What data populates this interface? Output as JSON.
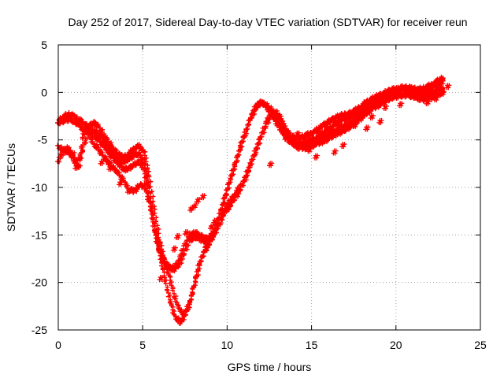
{
  "chart_data": {
    "type": "scatter",
    "title": "Day 252 of 2017, Sidereal Day-to-day VTEC variation (SDTVAR) for receiver reun",
    "xlabel": "GPS time / hours",
    "ylabel": "SDTVAR / TECUs",
    "xlim": [
      0,
      25
    ],
    "ylim": [
      -25,
      5
    ],
    "xticks": [
      0,
      5,
      10,
      15,
      20,
      25
    ],
    "yticks": [
      5,
      0,
      -5,
      -10,
      -15,
      -20,
      -25
    ],
    "grid": true,
    "marker": "+",
    "color": "#ff0000",
    "series": [
      {
        "x": [
          0.0,
          0.3,
          0.6,
          0.9,
          1.2,
          1.5,
          1.8,
          2.1,
          2.4,
          2.7,
          3.0,
          3.3,
          3.6,
          3.9,
          4.2,
          4.5,
          4.8,
          5.1,
          5.4,
          5.7,
          6.0,
          6.3,
          6.6,
          6.9,
          7.2,
          7.5,
          7.8,
          8.1,
          8.4,
          8.7,
          9.0,
          9.3,
          9.6,
          9.9,
          10.2,
          10.5,
          10.8,
          11.1,
          11.4,
          11.7,
          12.0,
          12.3,
          12.6,
          12.9,
          13.2,
          13.5,
          13.8,
          14.1,
          14.4,
          14.7,
          15.0,
          15.3,
          15.6,
          15.9,
          16.2,
          16.5,
          16.8,
          17.1,
          17.4,
          17.7,
          18.0,
          18.3,
          18.6,
          18.9,
          19.2,
          19.5,
          19.8,
          20.1,
          20.4,
          20.7,
          21.0,
          21.3,
          21.6,
          21.9,
          22.2,
          22.5,
          22.8
        ],
        "y": [
          -3.0,
          -2.6,
          -2.3,
          -2.5,
          -2.8,
          -3.3,
          -3.6,
          -3.2,
          -3.6,
          -4.5,
          -5.3,
          -6.0,
          -6.6,
          -6.8,
          -6.5,
          -5.9,
          -5.6,
          -6.4,
          -8.8,
          -12.5,
          -15.5,
          -17.8,
          -19.5,
          -21.5,
          -23.0,
          -23.3,
          -22.2,
          -20.0,
          -18.0,
          -16.6,
          -15.8,
          -14.6,
          -12.8,
          -11.0,
          -9.2,
          -7.6,
          -5.8,
          -4.2,
          -2.8,
          -1.6,
          -1.1,
          -1.3,
          -1.8,
          -2.6,
          -3.4,
          -4.1,
          -4.6,
          -4.8,
          -4.7,
          -4.5,
          -4.3,
          -4.0,
          -3.6,
          -3.2,
          -2.9,
          -2.6,
          -2.4,
          -2.3,
          -2.1,
          -1.8,
          -1.4,
          -1.0,
          -0.7,
          -0.4,
          -0.2,
          0.1,
          0.3,
          0.4,
          0.5,
          0.5,
          0.4,
          0.3,
          0.4,
          0.6,
          0.9,
          1.2,
          1.5
        ]
      },
      {
        "x": [
          0.0,
          0.3,
          0.6,
          0.9,
          1.2,
          1.5,
          1.8,
          2.1,
          2.4,
          2.7,
          3.0,
          3.3,
          3.6,
          3.9,
          4.2,
          4.5,
          4.8,
          5.1,
          5.4,
          5.7,
          6.0,
          6.3,
          6.6,
          6.9,
          7.2,
          7.5,
          7.8,
          8.1,
          8.4,
          8.7,
          9.0,
          9.3,
          9.6,
          9.9,
          10.2,
          10.5,
          10.8,
          11.1,
          11.4,
          11.7,
          12.0,
          12.3,
          12.6,
          12.9,
          13.2,
          13.5,
          13.8,
          14.1,
          14.4,
          14.7,
          15.0,
          15.3,
          15.6,
          15.9,
          16.2,
          16.5,
          16.8,
          17.1,
          17.4,
          17.7,
          18.0,
          18.3,
          18.6,
          18.9,
          19.2,
          19.5,
          19.8,
          20.1,
          20.4,
          20.7,
          21.0,
          21.3,
          21.6,
          21.9,
          22.2,
          22.5,
          22.8
        ],
        "y": [
          -3.2,
          -3.0,
          -2.8,
          -3.0,
          -3.4,
          -3.9,
          -4.3,
          -4.0,
          -4.4,
          -5.2,
          -6.0,
          -6.6,
          -7.1,
          -7.3,
          -7.0,
          -6.6,
          -6.4,
          -7.5,
          -10.2,
          -14.0,
          -17.0,
          -19.5,
          -21.8,
          -23.5,
          -24.2,
          -23.6,
          -22.0,
          -19.8,
          -17.8,
          -16.4,
          -15.6,
          -14.3,
          -12.6,
          -10.8,
          -9.0,
          -7.4,
          -5.6,
          -4.0,
          -2.6,
          -1.5,
          -1.0,
          -1.4,
          -2.2,
          -3.1,
          -4.0,
          -4.8,
          -5.3,
          -5.5,
          -5.4,
          -5.2,
          -5.0,
          -4.8,
          -4.4,
          -4.0,
          -3.6,
          -3.2,
          -2.9,
          -2.7,
          -2.5,
          -2.2,
          -1.8,
          -1.4,
          -1.0,
          -0.7,
          -0.4,
          -0.2,
          0.1,
          0.2,
          0.3,
          0.3,
          0.2,
          0.0,
          0.1,
          0.3,
          0.6,
          0.9,
          1.2
        ]
      },
      {
        "x": [
          0.0,
          0.3,
          0.6,
          0.9,
          1.2,
          1.5,
          1.8,
          2.1,
          2.4,
          2.7,
          3.0,
          3.3,
          3.6,
          3.9,
          4.2,
          4.5,
          4.8,
          5.1,
          5.4,
          5.7,
          6.0,
          6.3,
          6.6,
          6.9,
          7.2,
          7.5,
          7.8,
          8.1,
          8.4,
          8.7,
          9.0,
          9.3,
          9.6,
          9.9,
          10.2,
          10.5,
          10.8,
          11.1,
          11.4,
          11.7,
          12.0,
          12.3,
          12.6,
          12.9,
          13.2,
          13.5,
          13.8,
          14.1,
          14.4,
          14.7,
          15.0,
          15.3,
          15.6,
          15.9,
          16.2,
          16.5,
          16.8,
          17.1,
          17.4,
          17.7,
          18.0,
          18.3,
          18.6,
          18.9,
          19.2,
          19.5,
          19.8,
          20.1,
          20.4,
          20.7,
          21.0,
          21.3,
          21.6,
          21.9,
          22.2,
          22.5,
          22.8
        ],
        "y": [
          -5.8,
          -6.0,
          -6.3,
          -6.8,
          -7.5,
          -4.5,
          -3.6,
          -4.6,
          -5.0,
          -5.6,
          -6.4,
          -7.0,
          -7.6,
          -8.1,
          -8.0,
          -7.6,
          -7.3,
          -8.2,
          -11.0,
          -14.2,
          -16.5,
          -17.8,
          -18.5,
          -18.6,
          -18.0,
          -16.8,
          -15.6,
          -15.2,
          -15.4,
          -15.8,
          -15.5,
          -14.8,
          -13.6,
          -12.6,
          -11.8,
          -11.0,
          -10.2,
          -9.0,
          -7.6,
          -6.2,
          -4.8,
          -3.5,
          -2.4,
          -2.0,
          -2.8,
          -3.9,
          -4.8,
          -5.4,
          -5.6,
          -5.5,
          -5.3,
          -5.0,
          -4.8,
          -4.5,
          -4.2,
          -3.9,
          -3.6,
          -3.4,
          -3.1,
          -2.6,
          -2.1,
          -1.6,
          -1.2,
          -0.9,
          -0.6,
          -0.3,
          0.0,
          0.1,
          0.2,
          0.2,
          0.1,
          -0.2,
          -0.4,
          -0.3,
          0.0,
          0.3,
          0.5
        ]
      },
      {
        "x": [
          0.0,
          0.3,
          0.6,
          0.9,
          1.2,
          1.5,
          1.8,
          2.1,
          2.4,
          2.7,
          3.0,
          3.3,
          3.6,
          3.9,
          4.2,
          4.5,
          4.8,
          5.1,
          5.4,
          5.7,
          6.0,
          6.3,
          6.6,
          6.9,
          7.2,
          7.5,
          7.8,
          8.1,
          8.4,
          8.7,
          9.0,
          9.3,
          9.6,
          9.9,
          10.2,
          10.5,
          10.8,
          11.1,
          11.4,
          11.7,
          12.0,
          12.3,
          12.6,
          12.9,
          13.2,
          13.5,
          13.8,
          14.1,
          14.4,
          14.7,
          15.0,
          15.3,
          15.6,
          15.9,
          16.2,
          16.5,
          16.8,
          17.1,
          17.4,
          17.7,
          18.0,
          18.3,
          18.6,
          18.9,
          19.2,
          19.5,
          19.8,
          20.1,
          20.4,
          20.7,
          21.0,
          21.3,
          21.6,
          21.9,
          22.2,
          22.5,
          22.8
        ],
        "y": [
          -7.2,
          -6.2,
          -5.8,
          -7.0,
          -8.0,
          -5.6,
          -4.4,
          -5.4,
          -6.0,
          -6.8,
          -7.4,
          -8.0,
          -8.6,
          -9.4,
          -10.2,
          -10.4,
          -9.8,
          -9.8,
          -11.6,
          -14.6,
          -16.8,
          -18.0,
          -18.6,
          -18.4,
          -17.4,
          -16.0,
          -15.0,
          -14.8,
          -15.0,
          -15.4,
          -15.2,
          -14.5,
          -13.2,
          -12.2,
          -11.4,
          -10.6,
          -9.9,
          -8.8,
          -7.5,
          -6.0,
          -4.6,
          -3.2,
          -2.2,
          -2.8,
          -3.8,
          -4.6,
          -5.2,
          -5.7,
          -5.9,
          -5.8,
          -5.6,
          -5.4,
          -5.2,
          -4.9,
          -4.6,
          -4.4,
          -4.1,
          -3.8,
          -3.5,
          -3.0,
          -2.6,
          -2.1,
          -1.7,
          -1.4,
          -1.1,
          -0.8,
          -0.5,
          -0.4,
          -0.3,
          -0.3,
          -0.4,
          -0.6,
          -0.8,
          -0.7,
          -0.5,
          -0.2,
          0.0
        ]
      }
    ],
    "scattered_points": {
      "x": [
        8.2,
        8.5,
        8.0,
        7.8,
        6.8,
        7.0,
        7.5,
        9.2,
        9.0,
        12.5,
        14.1,
        14.5,
        14.8,
        15.2,
        15.8,
        16.3,
        16.8,
        17.5,
        18.2,
        18.5,
        19.0,
        19.3,
        20.2,
        21.5,
        21.8,
        22.3,
        22.7,
        23.0,
        2.5,
        3.0,
        3.6,
        4.1,
        1.0,
        0.8,
        6.0
      ],
      "y": [
        -11.4,
        -11.0,
        -12.0,
        -12.3,
        -16.5,
        -15.2,
        -14.8,
        -13.6,
        -14.2,
        -7.6,
        -4.4,
        -4.9,
        -6.1,
        -6.8,
        -5.1,
        -6.3,
        -5.6,
        -3.5,
        -3.8,
        -2.6,
        -3.1,
        -1.6,
        -1.3,
        -0.4,
        -1.1,
        -0.7,
        -0.1,
        0.6,
        -7.4,
        -8.0,
        -9.6,
        -10.4,
        -7.9,
        -6.5,
        -19.6
      ]
    }
  }
}
